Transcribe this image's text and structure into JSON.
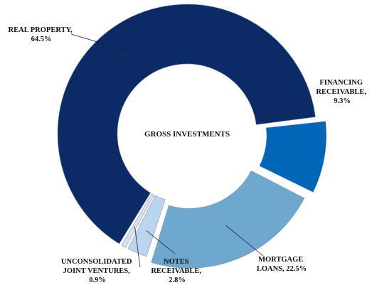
{
  "chart_data": {
    "type": "pie",
    "title": "GROSS INVESTMENTS",
    "slices": [
      {
        "label_lines": [
          "REAL PROPERTY,",
          "64.5%"
        ],
        "value": 64.5,
        "color": "#0b2a66"
      },
      {
        "label_lines": [
          "FINANCING",
          "RECEIVABLE,",
          "9.3%"
        ],
        "value": 9.3,
        "color": "#0066b8"
      },
      {
        "label_lines": [
          "MORTGAGE",
          "LOANS, 22.5%"
        ],
        "value": 22.5,
        "color": "#6fa8cf"
      },
      {
        "label_lines": [
          "NOTES",
          "RECEIVABLE,",
          "2.8%"
        ],
        "value": 2.8,
        "color": "#bcd5ee"
      },
      {
        "label_lines": [
          "UNCONSOLIDATED",
          "JOINT VENTURES,",
          "0.9%"
        ],
        "value": 0.9,
        "color": "#d8e0f2"
      }
    ]
  }
}
